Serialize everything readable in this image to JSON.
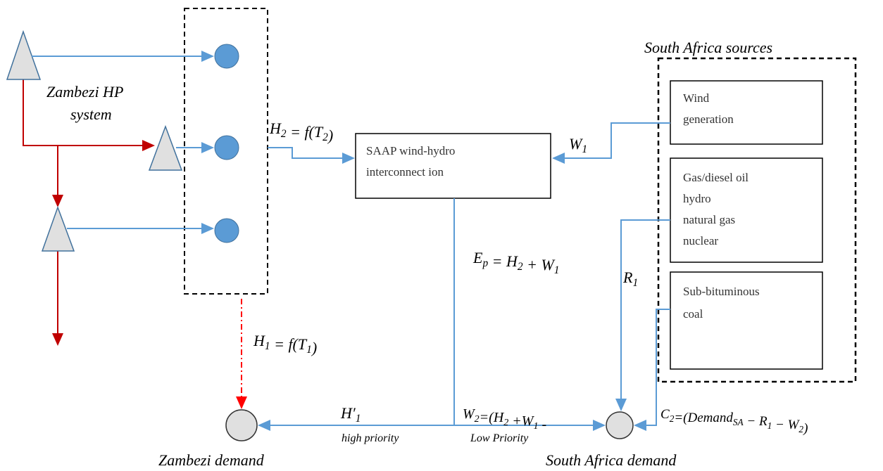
{
  "title": "South Africa sources",
  "zambezi_system": [
    "Zambezi HP",
    "system"
  ],
  "saap_box": [
    "SAAP wind-hydro",
    "interconnect ion"
  ],
  "sources": [
    [
      "Wind",
      "generation"
    ],
    [
      "Gas/diesel oil",
      "hydro",
      "natural gas",
      "nuclear"
    ],
    [
      "Sub-bituminous",
      "coal"
    ]
  ],
  "demands": [
    "Zambezi demand",
    "South Africa demand"
  ],
  "labels": [
    [
      "H",
      {
        "sub": "2"
      },
      " = f(T",
      {
        "sub": "2"
      },
      ")"
    ],
    [
      "W",
      {
        "sub": "1"
      }
    ],
    [
      "E",
      {
        "sub": "p"
      },
      " = H",
      {
        "sub": "2"
      },
      " + W",
      {
        "sub": "1"
      }
    ],
    [
      "R",
      {
        "sub": "1"
      }
    ],
    [
      "H",
      {
        "sub": "1"
      },
      " = f(T",
      {
        "sub": "1"
      },
      ")"
    ],
    [
      "H′",
      {
        "sub": "1"
      }
    ],
    [
      "W",
      {
        "sub": "2"
      },
      "=(H",
      {
        "sub": "2"
      },
      " +W",
      {
        "sub": "1"
      },
      " -"
    ],
    [
      "C",
      {
        "sub": "2"
      },
      "=(Demand",
      {
        "sub": "SA"
      },
      " − R",
      {
        "sub": "1"
      },
      " − W",
      {
        "sub": "2"
      },
      ")"
    ]
  ],
  "priorities": [
    "high priority",
    "Low Priority"
  ]
}
